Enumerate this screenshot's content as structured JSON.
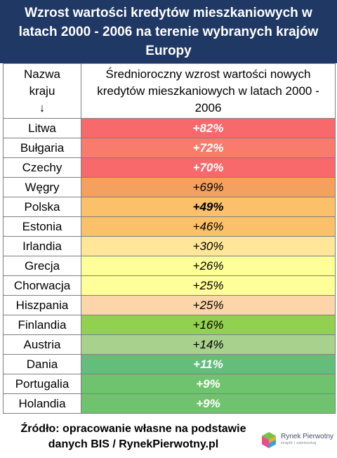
{
  "title": "Wzrost wartości kredytów mieszkaniowych w latach 2000 - 2006 na terenie wybranych krajów Europy",
  "header": {
    "country_col": "Nazwa kraju",
    "country_arrow": "↓",
    "value_col": "Średnioroczny wzrost wartości nowych kredytów mieszkaniowych w latach 2000 - 2006"
  },
  "chart_data": {
    "type": "table",
    "title": "Wzrost wartości kredytów mieszkaniowych w latach 2000 - 2006 na terenie wybranych krajów Europy",
    "columns": [
      "Nazwa kraju",
      "Średnioroczny wzrost wartości nowych kredytów mieszkaniowych w latach 2000 - 2006"
    ],
    "rows": [
      {
        "country": "Litwa",
        "label": "+82%",
        "value": 82,
        "color": "#f8696b",
        "text_style": "white"
      },
      {
        "country": "Bułgaria",
        "label": "+72%",
        "value": 72,
        "color": "#f87b6e",
        "text_style": "white"
      },
      {
        "country": "Czechy",
        "label": "+70%",
        "value": 70,
        "color": "#f8696b",
        "text_style": "white"
      },
      {
        "country": "Węgry",
        "label": "+69%",
        "value": 69,
        "color": "#f4a05e",
        "text_style": "normal"
      },
      {
        "country": "Polska",
        "label": "+49%",
        "value": 49,
        "color": "#fbc06a",
        "text_style": "bold"
      },
      {
        "country": "Estonia",
        "label": "+46%",
        "value": 46,
        "color": "#fbc06a",
        "text_style": "normal"
      },
      {
        "country": "Irlandia",
        "label": "+30%",
        "value": 30,
        "color": "#ffe699",
        "text_style": "normal"
      },
      {
        "country": "Grecja",
        "label": "+26%",
        "value": 26,
        "color": "#ffff99",
        "text_style": "normal"
      },
      {
        "country": "Chorwacja",
        "label": "+25%",
        "value": 25,
        "color": "#ffff99",
        "text_style": "normal"
      },
      {
        "country": "Hiszpania",
        "label": "+25%",
        "value": 25,
        "color": "#fcd5a8",
        "text_style": "normal"
      },
      {
        "country": "Finlandia",
        "label": "+16%",
        "value": 16,
        "color": "#92d050",
        "text_style": "normal"
      },
      {
        "country": "Austria",
        "label": "+14%",
        "value": 14,
        "color": "#a9d18e",
        "text_style": "normal"
      },
      {
        "country": "Dania",
        "label": "+11%",
        "value": 11,
        "color": "#63be7b",
        "text_style": "white"
      },
      {
        "country": "Portugalia",
        "label": "+9%",
        "value": 9,
        "color": "#70c36e",
        "text_style": "white"
      },
      {
        "country": "Holandia",
        "label": "+9%",
        "value": 9,
        "color": "#70c36e",
        "text_style": "white"
      }
    ]
  },
  "source": {
    "line1": "Źródło: opracowanie własne na podstawie",
    "line2": "danych BIS / RynekPierwotny.pl"
  },
  "logo": {
    "name": "Rynek Pierwotny",
    "tagline": "znajdź i zamieszkaj",
    "icon": "rynek-pierwotny-cube-logo-icon"
  }
}
